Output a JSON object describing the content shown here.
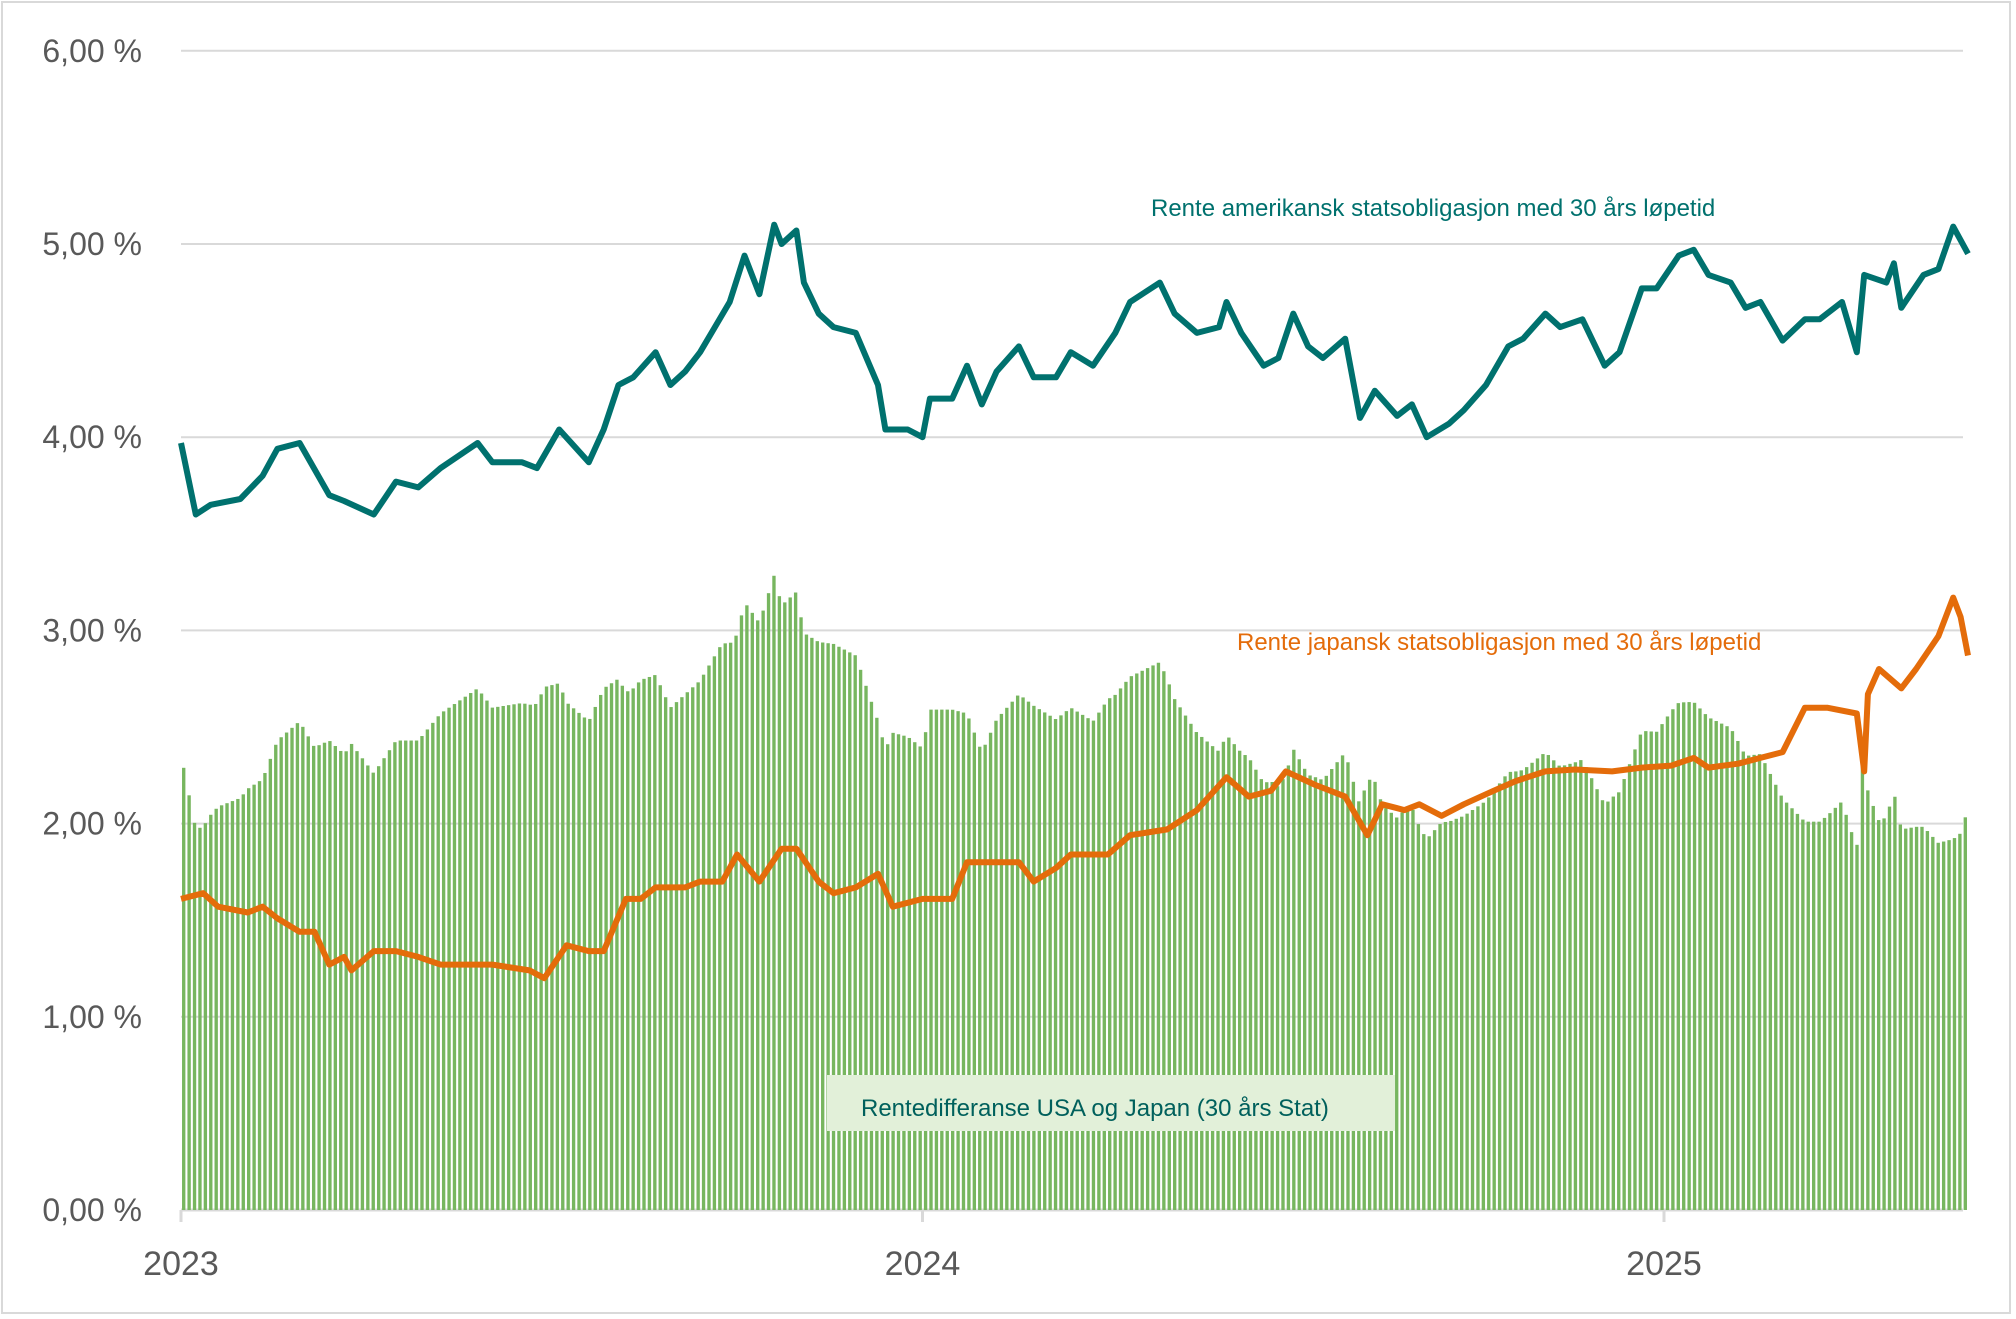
{
  "chart_data": {
    "type": "bar+line",
    "title": "",
    "xlabel": "",
    "ylabel": "",
    "ylim": [
      0,
      6
    ],
    "yticks": [
      "0,00 %",
      "1,00 %",
      "2,00 %",
      "3,00 %",
      "4,00 %",
      "5,00 %",
      "6,00 %"
    ],
    "ytick_values": [
      0,
      1,
      2,
      3,
      4,
      5,
      6
    ],
    "xlim": [
      2023.0,
      2025.41
    ],
    "xticks": [
      "2023",
      "2024",
      "2025"
    ],
    "xtick_values": [
      2023,
      2024,
      2025
    ],
    "grid": true,
    "colors": {
      "us": "#00716e",
      "jp": "#e46c0a",
      "spread": "#77b65f",
      "grid": "#d9d9d9",
      "legend_box": "#e2f0d9"
    },
    "series": [
      {
        "name": "Rente amerikansk statsobligasjon med 30 års løpetid",
        "type": "line",
        "x": [
          2023.0,
          2023.02,
          2023.04,
          2023.08,
          2023.11,
          2023.13,
          2023.16,
          2023.2,
          2023.22,
          2023.26,
          2023.29,
          2023.32,
          2023.35,
          2023.4,
          2023.42,
          2023.46,
          2023.48,
          2023.51,
          2023.55,
          2023.57,
          2023.59,
          2023.61,
          2023.64,
          2023.66,
          2023.68,
          2023.7,
          2023.72,
          2023.74,
          2023.76,
          2023.78,
          2023.8,
          2023.81,
          2023.83,
          2023.84,
          2023.86,
          2023.88,
          2023.91,
          2023.94,
          2023.95,
          2023.98,
          2024.0,
          2024.01,
          2024.04,
          2024.06,
          2024.08,
          2024.1,
          2024.13,
          2024.15,
          2024.18,
          2024.2,
          2024.23,
          2024.26,
          2024.28,
          2024.32,
          2024.34,
          2024.37,
          2024.4,
          2024.41,
          2024.43,
          2024.46,
          2024.48,
          2024.5,
          2024.52,
          2024.54,
          2024.57,
          2024.59,
          2024.61,
          2024.64,
          2024.66,
          2024.68,
          2024.71,
          2024.73,
          2024.76,
          2024.79,
          2024.81,
          2024.84,
          2024.86,
          2024.89,
          2024.92,
          2024.94,
          2024.97,
          2024.99,
          2025.02,
          2025.04,
          2025.06,
          2025.09,
          2025.11,
          2025.13,
          2025.16,
          2025.19,
          2025.21,
          2025.24,
          2025.26,
          2025.27,
          2025.3,
          2025.31,
          2025.32,
          2025.35,
          2025.37,
          2025.39,
          2025.41
        ],
        "values": [
          3.97,
          3.6,
          3.65,
          3.68,
          3.8,
          3.94,
          3.97,
          3.7,
          3.67,
          3.6,
          3.77,
          3.74,
          3.84,
          3.97,
          3.87,
          3.87,
          3.84,
          4.04,
          3.87,
          4.04,
          4.27,
          4.31,
          4.44,
          4.27,
          4.34,
          4.44,
          4.57,
          4.7,
          4.94,
          4.74,
          5.1,
          5.0,
          5.07,
          4.8,
          4.64,
          4.57,
          4.54,
          4.27,
          4.04,
          4.04,
          4.0,
          4.2,
          4.2,
          4.37,
          4.17,
          4.34,
          4.47,
          4.31,
          4.31,
          4.44,
          4.37,
          4.54,
          4.7,
          4.8,
          4.64,
          4.54,
          4.57,
          4.7,
          4.54,
          4.37,
          4.41,
          4.64,
          4.47,
          4.41,
          4.51,
          4.1,
          4.24,
          4.11,
          4.17,
          4.0,
          4.07,
          4.14,
          4.27,
          4.47,
          4.51,
          4.64,
          4.57,
          4.61,
          4.37,
          4.44,
          4.77,
          4.77,
          4.94,
          4.97,
          4.84,
          4.8,
          4.67,
          4.7,
          4.5,
          4.61,
          4.61,
          4.7,
          4.44,
          4.84,
          4.8,
          4.9,
          4.67,
          4.84,
          4.87,
          5.09,
          4.95
        ]
      },
      {
        "name": "Rente japansk statsobligasjon med 30 års løpetid",
        "type": "line",
        "x": [
          2023.0,
          2023.03,
          2023.05,
          2023.09,
          2023.11,
          2023.13,
          2023.16,
          2023.18,
          2023.2,
          2023.22,
          2023.23,
          2023.26,
          2023.29,
          2023.32,
          2023.35,
          2023.4,
          2023.42,
          2023.47,
          2023.49,
          2023.52,
          2023.55,
          2023.57,
          2023.6,
          2023.62,
          2023.64,
          2023.68,
          2023.7,
          2023.73,
          2023.75,
          2023.78,
          2023.81,
          2023.83,
          2023.86,
          2023.88,
          2023.91,
          2023.94,
          2023.96,
          2024.0,
          2024.04,
          2024.06,
          2024.09,
          2024.13,
          2024.15,
          2024.18,
          2024.2,
          2024.25,
          2024.28,
          2024.33,
          2024.37,
          2024.41,
          2024.44,
          2024.47,
          2024.49,
          2024.53,
          2024.57,
          2024.6,
          2024.62,
          2024.65,
          2024.67,
          2024.7,
          2024.73,
          2024.77,
          2024.8,
          2024.84,
          2024.88,
          2024.93,
          2024.97,
          2025.01,
          2025.04,
          2025.06,
          2025.1,
          2025.13,
          2025.16,
          2025.19,
          2025.22,
          2025.26,
          2025.27,
          2025.275,
          2025.29,
          2025.32,
          2025.34,
          2025.37,
          2025.39,
          2025.4,
          2025.41
        ],
        "values": [
          1.61,
          1.64,
          1.57,
          1.54,
          1.57,
          1.51,
          1.44,
          1.44,
          1.27,
          1.31,
          1.24,
          1.34,
          1.34,
          1.31,
          1.27,
          1.27,
          1.27,
          1.24,
          1.2,
          1.37,
          1.34,
          1.34,
          1.61,
          1.61,
          1.67,
          1.67,
          1.7,
          1.7,
          1.84,
          1.7,
          1.87,
          1.87,
          1.7,
          1.64,
          1.67,
          1.74,
          1.57,
          1.61,
          1.61,
          1.8,
          1.8,
          1.8,
          1.7,
          1.77,
          1.84,
          1.84,
          1.94,
          1.97,
          2.07,
          2.24,
          2.14,
          2.17,
          2.27,
          2.2,
          2.14,
          1.94,
          2.1,
          2.07,
          2.1,
          2.04,
          2.1,
          2.17,
          2.22,
          2.27,
          2.28,
          2.27,
          2.29,
          2.3,
          2.34,
          2.29,
          2.31,
          2.34,
          2.37,
          2.6,
          2.6,
          2.57,
          2.27,
          2.67,
          2.8,
          2.7,
          2.8,
          2.97,
          3.17,
          3.07,
          2.87
        ]
      },
      {
        "name": "Rentedifferanse USA og Japan (30 års Stat)",
        "type": "bar",
        "derived_from": "US minus Japan"
      }
    ]
  }
}
